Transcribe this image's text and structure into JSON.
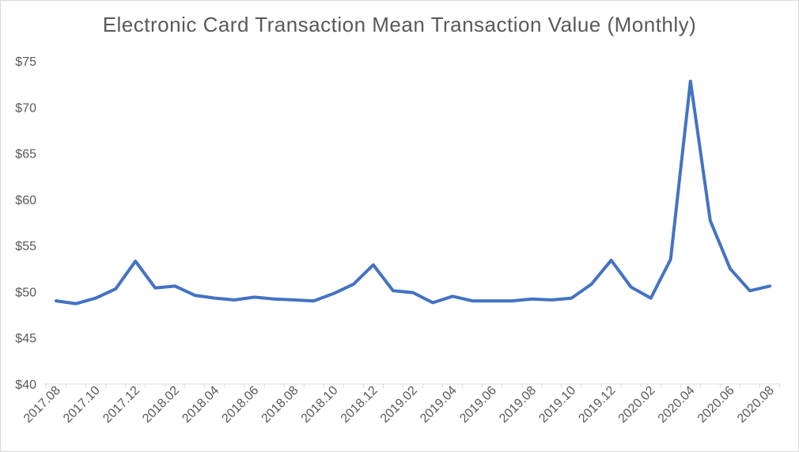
{
  "chart_data": {
    "type": "line",
    "title": "Electronic Card Transaction Mean Transaction Value (Monthly)",
    "xlabel": "",
    "ylabel": "",
    "ylim": [
      40,
      75
    ],
    "y_ticks": [
      40,
      45,
      50,
      55,
      60,
      65,
      70,
      75
    ],
    "y_tick_prefix": "$",
    "x_tick_labels": [
      "2017.08",
      "2017.10",
      "2017.12",
      "2018.02",
      "2018.04",
      "2018.06",
      "2018.08",
      "2018.10",
      "2018.12",
      "2019.02",
      "2019.04",
      "2019.06",
      "2019.08",
      "2019.10",
      "2019.12",
      "2020.02",
      "2020.04",
      "2020.06",
      "2020.08"
    ],
    "grid": false,
    "legend": "none",
    "series_color": "#4472c4",
    "x": [
      "2017.08",
      "2017.09",
      "2017.10",
      "2017.11",
      "2017.12",
      "2018.01",
      "2018.02",
      "2018.03",
      "2018.04",
      "2018.05",
      "2018.06",
      "2018.07",
      "2018.08",
      "2018.09",
      "2018.10",
      "2018.11",
      "2018.12",
      "2019.01",
      "2019.02",
      "2019.03",
      "2019.04",
      "2019.05",
      "2019.06",
      "2019.07",
      "2019.08",
      "2019.09",
      "2019.10",
      "2019.11",
      "2019.12",
      "2020.01",
      "2020.02",
      "2020.03",
      "2020.04",
      "2020.05",
      "2020.06",
      "2020.07",
      "2020.08"
    ],
    "series": [
      {
        "values": [
          49.0,
          48.7,
          49.3,
          50.3,
          53.3,
          50.4,
          50.6,
          49.6,
          49.3,
          49.1,
          49.4,
          49.2,
          49.1,
          49.0,
          49.8,
          50.8,
          52.9,
          50.1,
          49.9,
          48.8,
          49.5,
          49.0,
          49.0,
          49.0,
          49.2,
          49.1,
          49.3,
          50.8,
          53.4,
          50.5,
          49.3,
          53.5,
          72.8,
          57.7,
          52.5,
          50.1,
          50.6
        ]
      }
    ]
  }
}
